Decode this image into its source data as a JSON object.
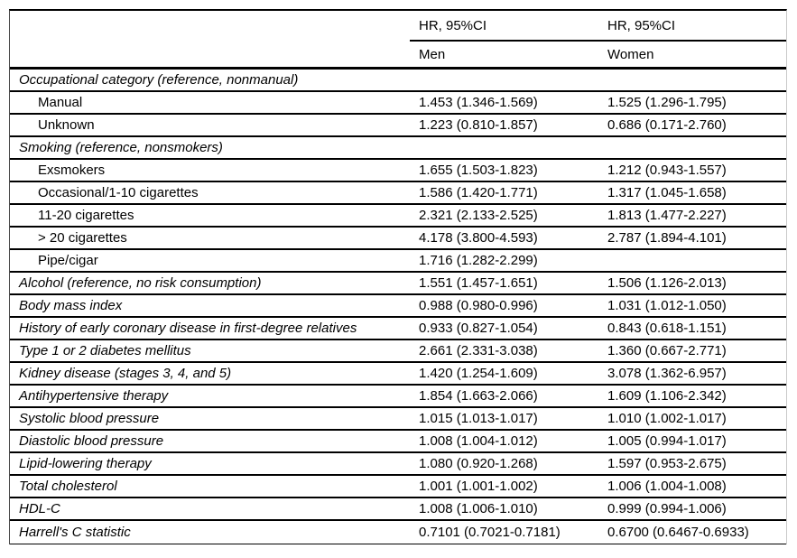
{
  "header": {
    "men_group_label": "HR, 95%CI",
    "women_group_label": "HR, 95%CI",
    "men_label": "Men",
    "women_label": "Women",
    "row_label_header": ""
  },
  "table": {
    "rows": [
      {
        "label": "Occupational category (reference, nonmanual)",
        "men": "",
        "women": ""
      },
      {
        "label": "Manual",
        "men": "1.453 (1.346-1.569)",
        "women": "1.525 (1.296-1.795)"
      },
      {
        "label": "Unknown",
        "men": "1.223 (0.810-1.857)",
        "women": "0.686 (0.171-2.760)"
      },
      {
        "label": "Smoking (reference, nonsmokers)",
        "men": "",
        "women": ""
      },
      {
        "label": "Exsmokers",
        "men": "1.655 (1.503-1.823)",
        "women": "1.212 (0.943-1.557)"
      },
      {
        "label": "Occasional/1-10 cigarettes",
        "men": "1.586 (1.420-1.771)",
        "women": "1.317 (1.045-1.658)"
      },
      {
        "label": "11-20 cigarettes",
        "men": "2.321 (2.133-2.525)",
        "women": "1.813 (1.477-2.227)"
      },
      {
        "label": "> 20 cigarettes",
        "men": "4.178 (3.800-4.593)",
        "women": "2.787 (1.894-4.101)"
      },
      {
        "label": "Pipe/cigar",
        "men": "1.716 (1.282-2.299)",
        "women": ""
      },
      {
        "label": "Alcohol (reference, no risk consumption)",
        "men": "1.551 (1.457-1.651)",
        "women": "1.506 (1.126-2.013)"
      },
      {
        "label": "Body mass index",
        "men": "0.988 (0.980-0.996)",
        "women": "1.031 (1.012-1.050)"
      },
      {
        "label": "History of early coronary disease in first-degree relatives",
        "men": "0.933 (0.827-1.054)",
        "women": "0.843 (0.618-1.151)"
      },
      {
        "label": "Type 1 or 2 diabetes mellitus",
        "men": "2.661 (2.331-3.038)",
        "women": "1.360 (0.667-2.771)"
      },
      {
        "label": "Kidney disease (stages 3, 4, and 5)",
        "men": "1.420 (1.254-1.609)",
        "women": "3.078 (1.362-6.957)"
      },
      {
        "label": "Antihypertensive therapy",
        "men": "1.854 (1.663-2.066)",
        "women": "1.609 (1.106-2.342)"
      },
      {
        "label": "Systolic blood pressure",
        "men": "1.015 (1.013-1.017)",
        "women": "1.010 (1.002-1.017)"
      },
      {
        "label": "Diastolic blood pressure",
        "men": "1.008 (1.004-1.012)",
        "women": "1.005 (0.994-1.017)"
      },
      {
        "label": "Lipid-lowering therapy",
        "men": "1.080 (0.920-1.268)",
        "women": "1.597 (0.953-2.675)"
      },
      {
        "label": "Total cholesterol",
        "men": "1.001 (1.001-1.002)",
        "women": "1.006 (1.004-1.008)"
      },
      {
        "label": "HDL-C",
        "men": "1.008 (1.006-1.010)",
        "women": "0.999 (0.994-1.006)"
      },
      {
        "label": "Harrell's C statistic",
        "men": "0.7101 (0.7021-0.7181)",
        "women": "0.6700 (0.6467-0.6933)"
      }
    ]
  },
  "colors": {
    "text": "#000000",
    "rule": "#000000",
    "right_edge_rule": "#c9c9c9",
    "background": "#ffffff"
  }
}
